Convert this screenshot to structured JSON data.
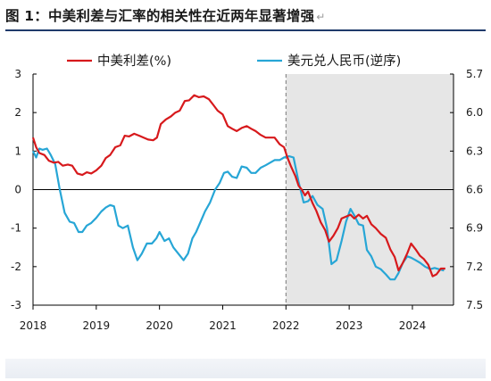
{
  "figure": {
    "title": "图 1：中美利差与汇率的相关性在近两年显著增强",
    "return_mark": "↵"
  },
  "colors": {
    "spread": "#d7191c",
    "fx": "#27a6d6",
    "shade": "#e6e6e6",
    "title_rule": "#1f3a6b"
  },
  "chart_data": {
    "type": "line",
    "x_ticks": [
      "2018",
      "2019",
      "2020",
      "2021",
      "2022",
      "2023",
      "2024"
    ],
    "xlim": [
      2018.0,
      2024.65
    ],
    "left_axis": {
      "ylim": [
        -3,
        3
      ],
      "ticks": [
        "3",
        "2",
        "1",
        "0",
        "-1",
        "-2",
        "-3"
      ]
    },
    "right_axis": {
      "ylim": [
        5.7,
        7.5
      ],
      "inverted": true,
      "ticks": [
        "5.7",
        "6.0",
        "6.3",
        "6.6",
        "6.9",
        "7.2",
        "7.5"
      ]
    },
    "zero_line": true,
    "shaded_region": [
      2022.0,
      2024.65
    ],
    "legend_position": "top",
    "series": [
      {
        "name": "中美利差(%)",
        "axis": "left",
        "color": "#d7191c",
        "points": [
          [
            2018.0,
            1.35
          ],
          [
            2018.05,
            1.1
          ],
          [
            2018.1,
            0.95
          ],
          [
            2018.18,
            0.9
          ],
          [
            2018.25,
            0.75
          ],
          [
            2018.33,
            0.7
          ],
          [
            2018.4,
            0.72
          ],
          [
            2018.47,
            0.62
          ],
          [
            2018.55,
            0.65
          ],
          [
            2018.62,
            0.62
          ],
          [
            2018.7,
            0.42
          ],
          [
            2018.78,
            0.38
          ],
          [
            2018.85,
            0.45
          ],
          [
            2018.92,
            0.42
          ],
          [
            2019.0,
            0.5
          ],
          [
            2019.08,
            0.62
          ],
          [
            2019.15,
            0.82
          ],
          [
            2019.22,
            0.9
          ],
          [
            2019.3,
            1.1
          ],
          [
            2019.38,
            1.15
          ],
          [
            2019.45,
            1.4
          ],
          [
            2019.52,
            1.38
          ],
          [
            2019.6,
            1.45
          ],
          [
            2019.68,
            1.4
          ],
          [
            2019.75,
            1.35
          ],
          [
            2019.82,
            1.3
          ],
          [
            2019.9,
            1.28
          ],
          [
            2019.96,
            1.35
          ],
          [
            2020.02,
            1.7
          ],
          [
            2020.1,
            1.82
          ],
          [
            2020.18,
            1.9
          ],
          [
            2020.25,
            2.0
          ],
          [
            2020.32,
            2.05
          ],
          [
            2020.4,
            2.3
          ],
          [
            2020.47,
            2.32
          ],
          [
            2020.55,
            2.45
          ],
          [
            2020.62,
            2.4
          ],
          [
            2020.7,
            2.42
          ],
          [
            2020.78,
            2.35
          ],
          [
            2020.85,
            2.2
          ],
          [
            2020.92,
            2.05
          ],
          [
            2021.0,
            1.95
          ],
          [
            2021.08,
            1.65
          ],
          [
            2021.15,
            1.58
          ],
          [
            2021.22,
            1.52
          ],
          [
            2021.3,
            1.6
          ],
          [
            2021.38,
            1.65
          ],
          [
            2021.45,
            1.58
          ],
          [
            2021.52,
            1.52
          ],
          [
            2021.6,
            1.42
          ],
          [
            2021.68,
            1.35
          ],
          [
            2021.75,
            1.35
          ],
          [
            2021.82,
            1.35
          ],
          [
            2021.9,
            1.18
          ],
          [
            2021.97,
            1.1
          ],
          [
            2022.02,
            0.85
          ],
          [
            2022.08,
            0.6
          ],
          [
            2022.15,
            0.35
          ],
          [
            2022.2,
            0.1
          ],
          [
            2022.25,
            0.0
          ],
          [
            2022.3,
            -0.15
          ],
          [
            2022.35,
            -0.05
          ],
          [
            2022.42,
            -0.35
          ],
          [
            2022.48,
            -0.55
          ],
          [
            2022.55,
            -0.85
          ],
          [
            2022.62,
            -1.05
          ],
          [
            2022.68,
            -1.35
          ],
          [
            2022.75,
            -1.2
          ],
          [
            2022.82,
            -1.0
          ],
          [
            2022.88,
            -0.75
          ],
          [
            2022.95,
            -0.7
          ],
          [
            2023.02,
            -0.65
          ],
          [
            2023.08,
            -0.75
          ],
          [
            2023.15,
            -0.65
          ],
          [
            2023.22,
            -0.75
          ],
          [
            2023.28,
            -0.68
          ],
          [
            2023.35,
            -0.9
          ],
          [
            2023.42,
            -1.0
          ],
          [
            2023.5,
            -1.15
          ],
          [
            2023.58,
            -1.25
          ],
          [
            2023.65,
            -1.55
          ],
          [
            2023.72,
            -1.75
          ],
          [
            2023.78,
            -2.1
          ],
          [
            2023.85,
            -1.9
          ],
          [
            2023.92,
            -1.65
          ],
          [
            2023.98,
            -1.4
          ],
          [
            2024.05,
            -1.55
          ],
          [
            2024.12,
            -1.72
          ],
          [
            2024.18,
            -1.8
          ],
          [
            2024.25,
            -1.95
          ],
          [
            2024.32,
            -2.25
          ],
          [
            2024.38,
            -2.2
          ],
          [
            2024.45,
            -2.05
          ],
          [
            2024.52,
            -2.05
          ]
        ]
      },
      {
        "name": "美元兑人民币(逆序)",
        "axis": "right",
        "color": "#27a6d6",
        "points": [
          [
            2018.0,
            6.3
          ],
          [
            2018.05,
            6.35
          ],
          [
            2018.1,
            6.28
          ],
          [
            2018.15,
            6.29
          ],
          [
            2018.22,
            6.28
          ],
          [
            2018.28,
            6.33
          ],
          [
            2018.35,
            6.4
          ],
          [
            2018.42,
            6.59
          ],
          [
            2018.5,
            6.78
          ],
          [
            2018.58,
            6.85
          ],
          [
            2018.65,
            6.86
          ],
          [
            2018.72,
            6.93
          ],
          [
            2018.78,
            6.93
          ],
          [
            2018.85,
            6.88
          ],
          [
            2018.92,
            6.86
          ],
          [
            2019.0,
            6.82
          ],
          [
            2019.08,
            6.77
          ],
          [
            2019.15,
            6.74
          ],
          [
            2019.22,
            6.72
          ],
          [
            2019.28,
            6.73
          ],
          [
            2019.35,
            6.88
          ],
          [
            2019.42,
            6.9
          ],
          [
            2019.5,
            6.88
          ],
          [
            2019.58,
            7.05
          ],
          [
            2019.65,
            7.15
          ],
          [
            2019.72,
            7.1
          ],
          [
            2019.8,
            7.02
          ],
          [
            2019.88,
            7.02
          ],
          [
            2019.95,
            6.98
          ],
          [
            2020.0,
            6.93
          ],
          [
            2020.08,
            7.0
          ],
          [
            2020.15,
            6.98
          ],
          [
            2020.22,
            7.05
          ],
          [
            2020.3,
            7.1
          ],
          [
            2020.38,
            7.15
          ],
          [
            2020.45,
            7.1
          ],
          [
            2020.52,
            6.98
          ],
          [
            2020.58,
            6.93
          ],
          [
            2020.65,
            6.85
          ],
          [
            2020.72,
            6.77
          ],
          [
            2020.8,
            6.7
          ],
          [
            2020.88,
            6.6
          ],
          [
            2020.95,
            6.55
          ],
          [
            2021.02,
            6.47
          ],
          [
            2021.08,
            6.46
          ],
          [
            2021.15,
            6.5
          ],
          [
            2021.22,
            6.51
          ],
          [
            2021.3,
            6.42
          ],
          [
            2021.38,
            6.43
          ],
          [
            2021.45,
            6.47
          ],
          [
            2021.52,
            6.47
          ],
          [
            2021.6,
            6.43
          ],
          [
            2021.68,
            6.41
          ],
          [
            2021.75,
            6.39
          ],
          [
            2021.82,
            6.37
          ],
          [
            2021.9,
            6.37
          ],
          [
            2021.97,
            6.35
          ],
          [
            2022.05,
            6.34
          ],
          [
            2022.12,
            6.35
          ],
          [
            2022.2,
            6.54
          ],
          [
            2022.28,
            6.7
          ],
          [
            2022.35,
            6.69
          ],
          [
            2022.42,
            6.65
          ],
          [
            2022.5,
            6.72
          ],
          [
            2022.58,
            6.75
          ],
          [
            2022.65,
            6.9
          ],
          [
            2022.72,
            7.18
          ],
          [
            2022.8,
            7.15
          ],
          [
            2022.88,
            7.0
          ],
          [
            2022.95,
            6.85
          ],
          [
            2023.02,
            6.75
          ],
          [
            2023.08,
            6.8
          ],
          [
            2023.15,
            6.87
          ],
          [
            2023.22,
            6.88
          ],
          [
            2023.28,
            7.07
          ],
          [
            2023.35,
            7.12
          ],
          [
            2023.42,
            7.2
          ],
          [
            2023.5,
            7.22
          ],
          [
            2023.58,
            7.26
          ],
          [
            2023.65,
            7.3
          ],
          [
            2023.72,
            7.3
          ],
          [
            2023.78,
            7.25
          ],
          [
            2023.85,
            7.17
          ],
          [
            2023.92,
            7.12
          ],
          [
            2023.98,
            7.13
          ],
          [
            2024.05,
            7.15
          ],
          [
            2024.12,
            7.17
          ],
          [
            2024.2,
            7.2
          ],
          [
            2024.28,
            7.22
          ],
          [
            2024.35,
            7.21
          ],
          [
            2024.42,
            7.22
          ],
          [
            2024.5,
            7.23
          ]
        ]
      }
    ]
  }
}
